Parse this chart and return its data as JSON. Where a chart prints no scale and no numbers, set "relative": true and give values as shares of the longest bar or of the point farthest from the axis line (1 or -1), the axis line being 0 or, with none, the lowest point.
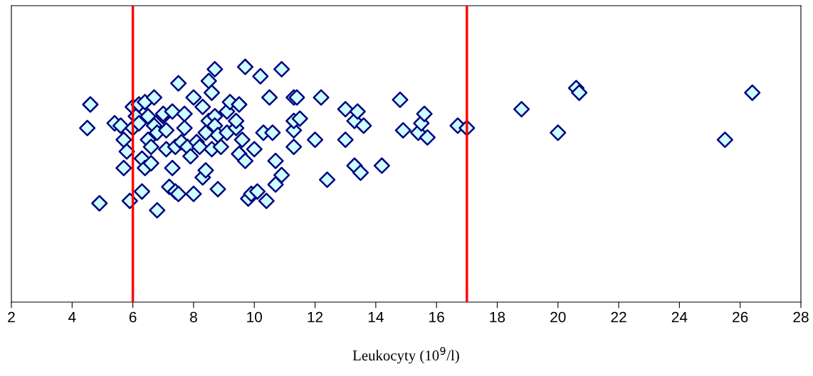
{
  "chart_data": {
    "type": "scatter",
    "xlabel": "Leukocyty (10$^{9}$/l)",
    "xlim": [
      2,
      28
    ],
    "xticks": [
      2,
      4,
      6,
      8,
      10,
      12,
      14,
      16,
      18,
      20,
      22,
      24,
      26,
      28
    ],
    "relative": true,
    "grid": false,
    "marker": "diamond",
    "tick_labels": "x",
    "ref_lines": [
      {
        "axis": "x",
        "value": 6,
        "color": "#ff0000"
      },
      {
        "axis": "x",
        "value": 17,
        "color": "#ff0000"
      }
    ],
    "series": [
      {
        "color": "#ccffff",
        "x": [
          4.6,
          4.5,
          4.9,
          5.4,
          5.6,
          5.7,
          5.7,
          5.8,
          5.9,
          6.0,
          6.0,
          6.1,
          6.2,
          6.2,
          6.3,
          6.3,
          6.4,
          6.4,
          6.5,
          6.5,
          6.6,
          6.6,
          6.7,
          6.7,
          6.8,
          6.8,
          7.0,
          7.0,
          7.1,
          7.1,
          7.2,
          7.3,
          7.3,
          7.4,
          7.4,
          7.5,
          7.5,
          7.6,
          7.7,
          7.7,
          7.8,
          7.9,
          8.0,
          8.0,
          8.1,
          8.2,
          8.3,
          8.3,
          8.4,
          8.4,
          8.5,
          8.5,
          8.6,
          8.6,
          8.7,
          8.7,
          8.7,
          8.8,
          8.8,
          8.9,
          9.1,
          9.1,
          9.2,
          9.4,
          9.4,
          9.5,
          9.5,
          9.6,
          9.7,
          9.7,
          9.8,
          9.9,
          10.0,
          10.1,
          10.2,
          10.3,
          10.4,
          10.5,
          10.6,
          10.7,
          10.7,
          10.9,
          10.9,
          11.3,
          11.3,
          11.3,
          11.3,
          11.4,
          11.5,
          12.0,
          12.2,
          12.4,
          13.0,
          13.0,
          13.3,
          13.3,
          13.4,
          13.5,
          13.6,
          14.2,
          14.8,
          14.9,
          15.4,
          15.5,
          15.6,
          15.7,
          16.7,
          17.0,
          18.8,
          20.0,
          20.6,
          20.7,
          25.5,
          26.4
        ],
        "values": [
          0.84,
          0.74,
          0.42,
          0.76,
          0.75,
          0.69,
          0.57,
          0.64,
          0.43,
          0.74,
          0.83,
          0.79,
          0.76,
          0.84,
          0.47,
          0.61,
          0.57,
          0.85,
          0.79,
          0.69,
          0.59,
          0.66,
          0.87,
          0.75,
          0.39,
          0.72,
          0.79,
          0.8,
          0.65,
          0.73,
          0.49,
          0.57,
          0.81,
          0.66,
          0.47,
          0.93,
          0.46,
          0.68,
          0.74,
          0.8,
          0.66,
          0.62,
          0.87,
          0.46,
          0.68,
          0.66,
          0.83,
          0.53,
          0.56,
          0.72,
          0.94,
          0.77,
          0.89,
          0.65,
          0.99,
          0.79,
          0.75,
          0.48,
          0.71,
          0.66,
          0.81,
          0.72,
          0.85,
          0.74,
          0.77,
          0.63,
          0.84,
          0.69,
          1.0,
          0.6,
          0.44,
          0.46,
          0.65,
          0.47,
          0.96,
          0.72,
          0.43,
          0.87,
          0.72,
          0.5,
          0.6,
          0.99,
          0.54,
          0.87,
          0.73,
          0.77,
          0.66,
          0.87,
          0.78,
          0.69,
          0.87,
          0.52,
          0.82,
          0.69,
          0.58,
          0.77,
          0.81,
          0.55,
          0.75,
          0.58,
          0.86,
          0.73,
          0.72,
          0.76,
          0.8,
          0.7,
          0.75,
          0.74,
          0.82,
          0.72,
          0.91,
          0.89,
          0.69,
          0.89
        ]
      }
    ]
  }
}
